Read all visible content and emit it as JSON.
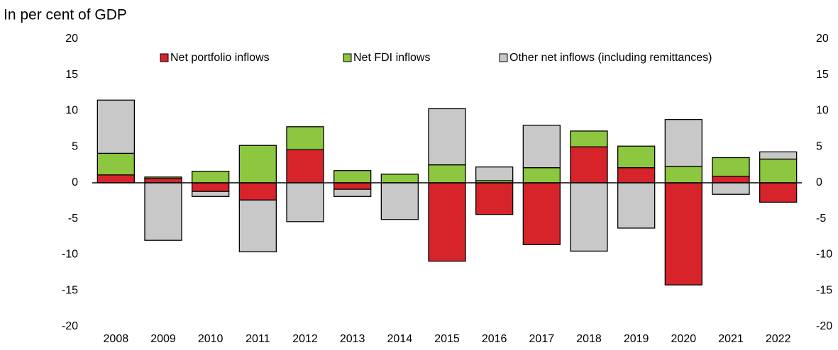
{
  "chart_data": {
    "type": "bar",
    "title": "In per cent of GDP",
    "categories": [
      "2008",
      "2009",
      "2010",
      "2011",
      "2012",
      "2013",
      "2014",
      "2015",
      "2016",
      "2017",
      "2018",
      "2019",
      "2020",
      "2021",
      "2022"
    ],
    "series": [
      {
        "name": "Net portfolio inflows",
        "color": "#d7232a",
        "values": [
          1.1,
          0.6,
          -1.2,
          -2.4,
          4.6,
          -0.9,
          0,
          -10.9,
          -4.4,
          -8.6,
          5.0,
          2.1,
          -14.2,
          0.9,
          -2.7
        ]
      },
      {
        "name": "Net FDI inflows",
        "color": "#8dc63f",
        "values": [
          3.0,
          0.2,
          1.6,
          5.2,
          3.2,
          1.7,
          1.2,
          2.5,
          0.3,
          2.1,
          2.2,
          3.0,
          2.3,
          2.6,
          3.3
        ]
      },
      {
        "name": "Other net inflows (including remittances)",
        "color": "#c8c8c8",
        "values": [
          7.4,
          -8.0,
          -0.7,
          -7.2,
          -5.4,
          -1.0,
          -5.1,
          7.8,
          1.9,
          5.9,
          -9.5,
          -6.3,
          6.5,
          -1.6,
          1.0
        ]
      }
    ],
    "stacked": true,
    "ylim": [
      -20,
      20
    ],
    "yticks": [
      -20,
      -15,
      -10,
      -5,
      0,
      5,
      10,
      15,
      20
    ],
    "y2lim": [
      -20,
      20
    ],
    "y2ticks": [
      -20,
      -15,
      -10,
      -5,
      0,
      5,
      10,
      15,
      20
    ],
    "legend": "top"
  }
}
